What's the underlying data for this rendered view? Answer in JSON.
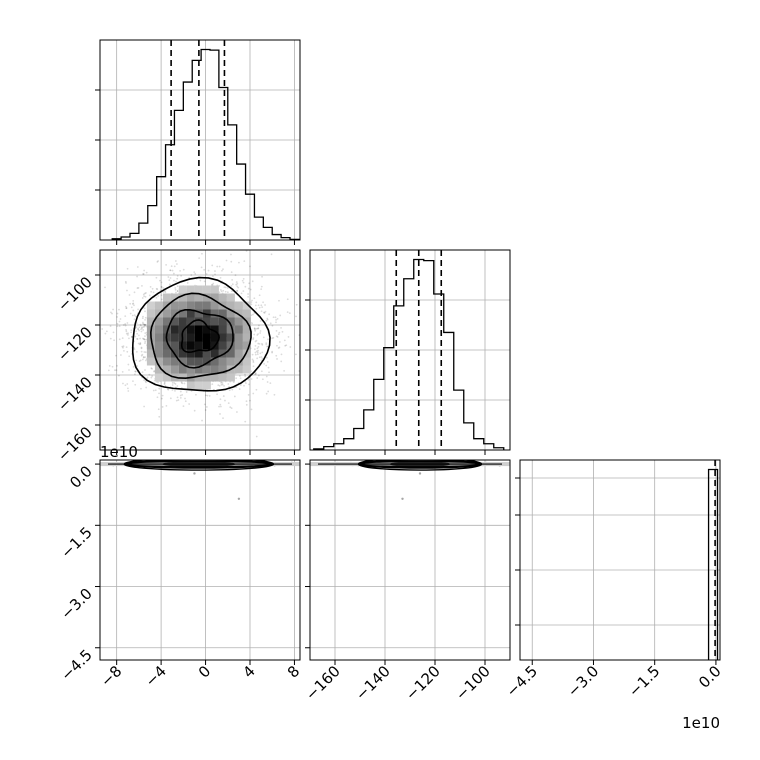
{
  "chart_data": {
    "type": "corner",
    "title": "",
    "grid": true,
    "variables": [
      {
        "index": 0,
        "range": [
          -9.5,
          8.5
        ],
        "ticks": [
          -8,
          -4,
          0,
          4,
          8
        ],
        "tick_labels": [
          "−8",
          "−4",
          "0",
          "4",
          "8"
        ],
        "offset_text": ""
      },
      {
        "index": 1,
        "range": [
          -170,
          -90
        ],
        "ticks": [
          -160,
          -140,
          -120,
          -100
        ],
        "tick_labels": [
          "−160",
          "−140",
          "−120",
          "−100"
        ],
        "offset_text": ""
      },
      {
        "index": 2,
        "range": [
          -4.8,
          0.1
        ],
        "ticks": [
          -4.5,
          -3.0,
          -1.5,
          0.0
        ],
        "tick_labels": [
          "−4.5",
          "−3.0",
          "−1.5",
          "0.0"
        ],
        "offset_text": "1e10"
      }
    ],
    "histograms": [
      {
        "variable": 0,
        "bin_edges": [
          -8.4,
          -7.6,
          -6.8,
          -6.0,
          -5.2,
          -4.4,
          -3.6,
          -2.8,
          -2.0,
          -1.2,
          -0.4,
          0.4,
          1.2,
          2.0,
          2.8,
          3.6,
          4.4,
          5.2,
          6.0,
          6.8,
          7.6,
          8.4
        ],
        "counts": [
          2,
          5,
          11,
          28,
          57,
          105,
          158,
          215,
          262,
          298,
          316,
          315,
          253,
          191,
          126,
          76,
          38,
          21,
          9,
          4,
          1
        ],
        "quantiles": [
          -3.1,
          -0.6,
          1.7
        ]
      },
      {
        "variable": 1,
        "bin_edges": [
          -168.5,
          -164.5,
          -160.5,
          -156.5,
          -152.5,
          -148.5,
          -144.5,
          -140.5,
          -136.5,
          -132.5,
          -128.5,
          -124.5,
          -120.5,
          -116.5,
          -112.5,
          -108.5,
          -104.5,
          -100.5,
          -96.5,
          -92.5
        ],
        "counts": [
          2,
          6,
          11,
          20,
          38,
          71,
          125,
          181,
          255,
          303,
          337,
          335,
          276,
          208,
          106,
          48,
          20,
          11,
          4
        ],
        "quantiles": [
          -135.5,
          -126.5,
          -117.5
        ]
      },
      {
        "variable": 2,
        "bin_edges": [
          -0.18,
          0.04
        ],
        "counts": [
          315
        ],
        "quantiles": [
          -0.02
        ]
      }
    ],
    "density_panels": [
      {
        "x_variable": 0,
        "y_variable": 1,
        "center": [
          -0.6,
          -125
        ],
        "spread": [
          3.0,
          11
        ],
        "contour_levels": 4
      },
      {
        "x_variable": 0,
        "y_variable": 2,
        "center": [
          -0.6,
          0.0
        ],
        "spread": [
          3.0,
          0.05
        ],
        "contour_levels": 3
      },
      {
        "x_variable": 1,
        "y_variable": 2,
        "center": [
          -126,
          0.0
        ],
        "spread": [
          11,
          0.05
        ],
        "contour_levels": 3
      }
    ],
    "outlier_points": [
      {
        "x_variable": 0,
        "y_variable": 2,
        "x": -1.0,
        "y": -0.23
      },
      {
        "x_variable": 0,
        "y_variable": 2,
        "x": 3.0,
        "y": -0.85
      },
      {
        "x_variable": 1,
        "y_variable": 2,
        "x": -126,
        "y": -0.23
      },
      {
        "x_variable": 1,
        "y_variable": 2,
        "x": -133,
        "y": -0.85
      }
    ]
  }
}
